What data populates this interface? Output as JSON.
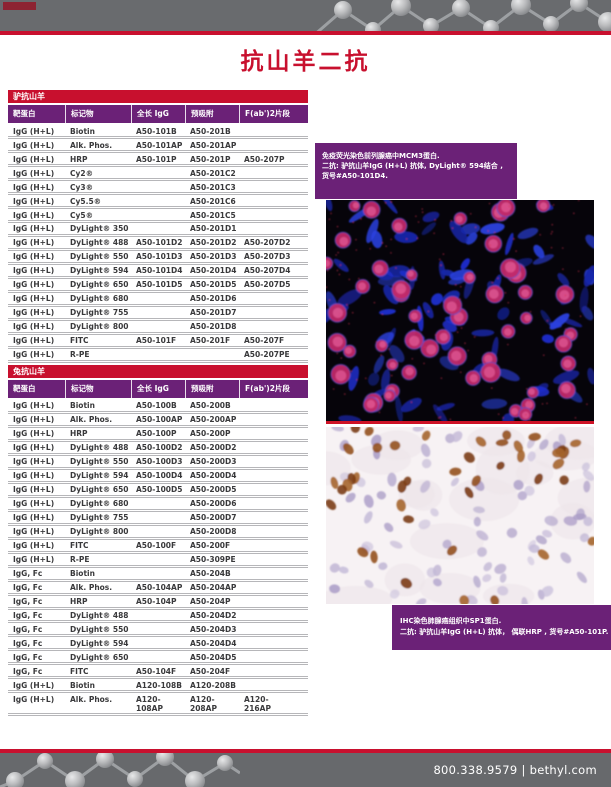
{
  "page": {
    "title": "抗山羊二抗",
    "footer_text": "800.338.9579 | bethyl.com"
  },
  "colors": {
    "brand_red": "#C8102E",
    "header_purple": "#6B2177",
    "band_gray": "#696B6E"
  },
  "columns": [
    "靶蛋白",
    "标记物",
    "全长 IgG",
    "预吸附",
    "F(ab')2片段"
  ],
  "tables": [
    {
      "title": "驴抗山羊",
      "rows": [
        [
          "IgG (H+L)",
          "Biotin",
          "A50-101B",
          "A50-201B",
          ""
        ],
        [
          "IgG (H+L)",
          "Alk. Phos.",
          "A50-101AP",
          "A50-201AP",
          ""
        ],
        [
          "IgG (H+L)",
          "HRP",
          "A50-101P",
          "A50-201P",
          "A50-207P"
        ],
        [
          "IgG (H+L)",
          "Cy2®",
          "",
          "A50-201C2",
          ""
        ],
        [
          "IgG (H+L)",
          "Cy3®",
          "",
          "A50-201C3",
          ""
        ],
        [
          "IgG (H+L)",
          "Cy5.5®",
          "",
          "A50-201C6",
          ""
        ],
        [
          "IgG (H+L)",
          "Cy5®",
          "",
          "A50-201C5",
          ""
        ],
        [
          "IgG (H+L)",
          "DyLight® 350",
          "",
          "A50-201D1",
          ""
        ],
        [
          "IgG (H+L)",
          "DyLight® 488",
          "A50-101D2",
          "A50-201D2",
          "A50-207D2"
        ],
        [
          "IgG (H+L)",
          "DyLight® 550",
          "A50-101D3",
          "A50-201D3",
          "A50-207D3"
        ],
        [
          "IgG (H+L)",
          "DyLight® 594",
          "A50-101D4",
          "A50-201D4",
          "A50-207D4"
        ],
        [
          "IgG (H+L)",
          "DyLight® 650",
          "A50-101D5",
          "A50-201D5",
          "A50-207D5"
        ],
        [
          "IgG (H+L)",
          "DyLight® 680",
          "",
          "A50-201D6",
          ""
        ],
        [
          "IgG (H+L)",
          "DyLight® 755",
          "",
          "A50-201D7",
          ""
        ],
        [
          "IgG (H+L)",
          "DyLight® 800",
          "",
          "A50-201D8",
          ""
        ],
        [
          "IgG (H+L)",
          "FITC",
          "A50-101F",
          "A50-201F",
          "A50-207F"
        ],
        [
          "IgG (H+L)",
          "R-PE",
          "",
          "",
          "A50-207PE"
        ]
      ]
    },
    {
      "title": "兔抗山羊",
      "rows": [
        [
          "IgG (H+L)",
          "Biotin",
          "A50-100B",
          "A50-200B",
          ""
        ],
        [
          "IgG (H+L)",
          "Alk. Phos.",
          "A50-100AP",
          "A50-200AP",
          ""
        ],
        [
          "IgG (H+L)",
          "HRP",
          "A50-100P",
          "A50-200P",
          ""
        ],
        [
          "IgG (H+L)",
          "DyLight® 488",
          "A50-100D2",
          "A50-200D2",
          ""
        ],
        [
          "IgG (H+L)",
          "DyLight® 550",
          "A50-100D3",
          "A50-200D3",
          ""
        ],
        [
          "IgG (H+L)",
          "DyLight® 594",
          "A50-100D4",
          "A50-200D4",
          ""
        ],
        [
          "IgG (H+L)",
          "DyLight® 650",
          "A50-100D5",
          "A50-200D5",
          ""
        ],
        [
          "IgG (H+L)",
          "DyLight® 680",
          "",
          "A50-200D6",
          ""
        ],
        [
          "IgG (H+L)",
          "DyLight® 755",
          "",
          "A50-200D7",
          ""
        ],
        [
          "IgG (H+L)",
          "DyLight® 800",
          "",
          "A50-200D8",
          ""
        ],
        [
          "IgG (H+L)",
          "FITC",
          "A50-100F",
          "A50-200F",
          ""
        ],
        [
          "IgG (H+L)",
          "R-PE",
          "",
          "A50-309PE",
          ""
        ],
        [
          "IgG, Fc",
          "Biotin",
          "",
          "A50-204B",
          ""
        ],
        [
          "IgG, Fc",
          "Alk. Phos.",
          "A50-104AP",
          "A50-204AP",
          ""
        ],
        [
          "IgG, Fc",
          "HRP",
          "A50-104P",
          "A50-204P",
          ""
        ],
        [
          "IgG, Fc",
          "DyLight® 488",
          "",
          "A50-204D2",
          ""
        ],
        [
          "IgG, Fc",
          "DyLight® 550",
          "",
          "A50-204D3",
          ""
        ],
        [
          "IgG, Fc",
          "DyLight® 594",
          "",
          "A50-204D4",
          ""
        ],
        [
          "IgG, Fc",
          "DyLight® 650",
          "",
          "A50-204D5",
          ""
        ],
        [
          "IgG, Fc",
          "FITC",
          "A50-104F",
          "A50-204F",
          ""
        ],
        [
          "IgG (H+L)",
          "Biotin",
          "A120-108B",
          "A120-208B",
          ""
        ],
        [
          "IgG (H+L)",
          "Alk. Phos.",
          "A120-108AP",
          "A120-208AP",
          "A120-216AP"
        ]
      ]
    }
  ],
  "captions": {
    "if": {
      "line1": "免疫荧光染色前列腺癌中MCM3蛋白.",
      "line2": "二抗: 驴抗山羊IgG (H+L) 抗体, DyLight® 594结合 ,",
      "line3": "货号#A50-101D4."
    },
    "ihc": {
      "line1": "IHC染色肺腺癌组织中SP1蛋白.",
      "line2": "二抗: 驴抗山羊IgG (H+L) 抗体， 偶联HRP , 货号#A50-101P."
    }
  }
}
